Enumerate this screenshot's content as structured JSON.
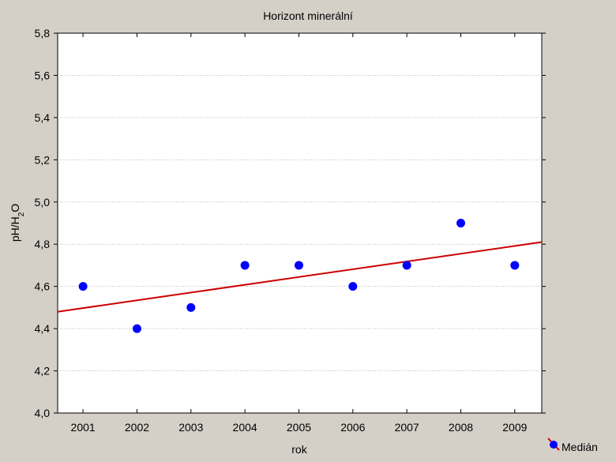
{
  "chart_data": {
    "type": "scatter",
    "title": "Horizont minerální",
    "xlabel": "rok",
    "ylabel_main": "pH/H",
    "ylabel_sub": "2",
    "ylabel_tail": "O",
    "x": [
      2001,
      2002,
      2003,
      2004,
      2005,
      2006,
      2007,
      2008,
      2009
    ],
    "xlim": [
      2000.53,
      2009.5
    ],
    "ylim": [
      4.0,
      5.8
    ],
    "yticks": [
      4.0,
      4.2,
      4.4,
      4.6,
      4.8,
      5.0,
      5.2,
      5.4,
      5.6,
      5.8
    ],
    "ytick_labels": [
      "4,0",
      "4,2",
      "4,4",
      "4,6",
      "4,8",
      "5,0",
      "5,2",
      "5,4",
      "5,6",
      "5,8"
    ],
    "xtick_labels": [
      "2001",
      "2002",
      "2003",
      "2004",
      "2005",
      "2006",
      "2007",
      "2008",
      "2009"
    ],
    "grid": true,
    "series": [
      {
        "name": "Medián",
        "values": [
          4.6,
          4.4,
          4.5,
          4.7,
          4.7,
          4.6,
          4.7,
          4.9,
          4.7
        ],
        "color": "#0000ff"
      }
    ],
    "fit_line": {
      "color": "#cc0000",
      "start": [
        2000.53,
        4.48
      ],
      "end": [
        2009.5,
        4.81
      ]
    },
    "legend": {
      "position": "bottom-right",
      "label": "Medián"
    }
  }
}
